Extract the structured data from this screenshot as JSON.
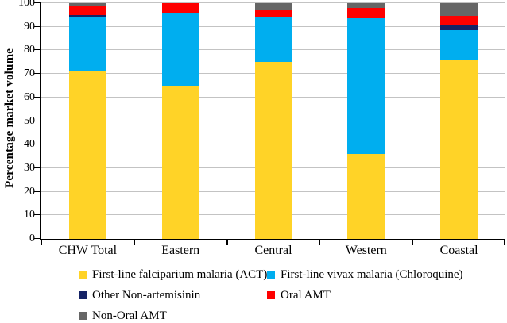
{
  "y_axis": {
    "title": "Percentage market volume",
    "ticks": [
      0,
      10,
      20,
      30,
      40,
      50,
      60,
      70,
      80,
      90,
      100
    ],
    "min": 0,
    "max": 100
  },
  "chart_data": {
    "type": "bar",
    "stacked": true,
    "title": "",
    "categories": [
      "CHW Total",
      "Eastern",
      "Central",
      "Western",
      "Coastal"
    ],
    "series": [
      {
        "name": "First-line falciparium malaria (ACT)",
        "color": "#FFD327",
        "values": [
          71.5,
          65,
          75,
          36,
          76
        ]
      },
      {
        "name": "First-line vivax malaria (Chloroquine)",
        "color": "#00AEEF",
        "values": [
          22.5,
          30.5,
          19,
          57.5,
          12.5
        ]
      },
      {
        "name": "Other Non-artemisinin",
        "color": "#152366",
        "values": [
          1,
          0.5,
          0,
          0,
          2
        ]
      },
      {
        "name": "Oral AMT",
        "color": "#FE0000",
        "values": [
          3.5,
          4,
          3,
          4.5,
          4
        ]
      },
      {
        "name": "Non-Oral AMT",
        "color": "#666666",
        "values": [
          1.5,
          0,
          3,
          2,
          5.5
        ]
      }
    ],
    "xlabel": "",
    "ylabel": "Percentage market volume",
    "ylim": [
      0,
      100
    ],
    "grid": true,
    "legend_position": "bottom"
  }
}
